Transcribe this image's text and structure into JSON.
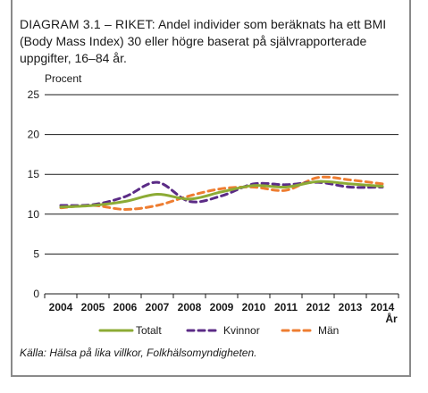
{
  "header": {
    "title_lead": "DIAGRAM 3.1 – RIKET:",
    "title_rest": " Andel individer som beräknats ha ett BMI (Body Mass Index) 30 eller högre baserat på självrapporterade uppgifter, 16–84 år."
  },
  "footer": {
    "source": "Källa: Hälsa på lika villkor, Folkhälsomyndigheten."
  },
  "chart_data": {
    "type": "line",
    "title": "DIAGRAM 3.1 – RIKET: Andel individer som beräknats ha ett BMI (Body Mass Index) 30 eller högre baserat på självrapporterade uppgifter, 16–84 år.",
    "xlabel": "År",
    "ylabel": "Procent",
    "ylim": [
      0,
      25
    ],
    "yticks": [
      0,
      5,
      10,
      15,
      20,
      25
    ],
    "x": [
      2004,
      2005,
      2006,
      2007,
      2008,
      2009,
      2010,
      2011,
      2012,
      2013,
      2014
    ],
    "grid": true,
    "legend_position": "bottom",
    "series": [
      {
        "name": "Totalt",
        "color": "#8cab35",
        "dash": "solid",
        "values": [
          10.9,
          11.1,
          11.6,
          12.5,
          11.9,
          12.8,
          13.6,
          13.4,
          14.1,
          13.8,
          13.5
        ]
      },
      {
        "name": "Kvinnor",
        "color": "#5b2b86",
        "dash": "dashed",
        "values": [
          11.1,
          11.2,
          12.2,
          14.0,
          11.6,
          12.3,
          13.8,
          13.7,
          14.0,
          13.4,
          13.4
        ]
      },
      {
        "name": "Män",
        "color": "#ee7d31",
        "dash": "dashed",
        "values": [
          10.8,
          11.1,
          10.6,
          11.1,
          12.3,
          13.2,
          13.4,
          13.0,
          14.6,
          14.3,
          13.8
        ]
      }
    ]
  }
}
